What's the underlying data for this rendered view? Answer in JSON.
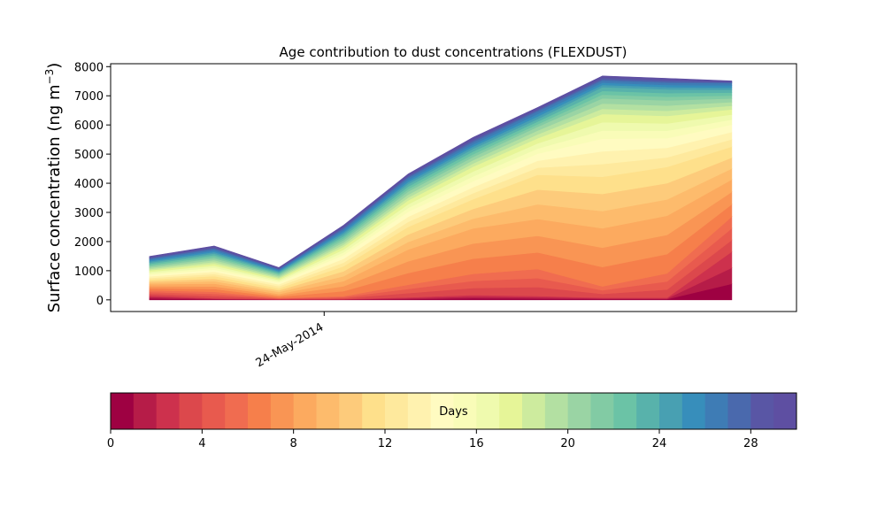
{
  "chart_data": {
    "type": "area",
    "stacked": true,
    "title": "Age contribution to dust concentrations (FLEXDUST)",
    "ylabel_text": "Surface concentration (ng m",
    "ylabel_sup": "−3",
    "ylabel_close": ")",
    "xlabel": "",
    "ylim": [
      -400,
      8100
    ],
    "yticks": [
      0,
      1000,
      2000,
      3000,
      4000,
      5000,
      6000,
      7000,
      8000
    ],
    "ytick_labels": [
      "0",
      "1000",
      "2000",
      "3000",
      "4000",
      "5000",
      "6000",
      "7000",
      "8000"
    ],
    "xlim": [
      -0.6,
      10.0
    ],
    "x": [
      0,
      1,
      2,
      3,
      4,
      5,
      6,
      7,
      8,
      9
    ],
    "xticks": [
      {
        "x": 2.7,
        "label": "24-May-2014"
      }
    ],
    "grid": false,
    "bands": 30,
    "cum_frac_knots": {
      "frac": [
        0,
        0.1,
        0.2,
        0.3,
        0.4,
        0.5,
        0.6,
        0.7,
        0.8,
        0.9,
        1.0
      ],
      "profiles": [
        [
          0,
          0.1,
          0.22,
          0.36,
          0.47,
          0.58,
          0.68,
          0.77,
          0.86,
          0.94,
          1.0
        ],
        [
          0,
          0.03,
          0.15,
          0.3,
          0.44,
          0.56,
          0.67,
          0.77,
          0.86,
          0.94,
          1.0
        ],
        [
          0,
          0.02,
          0.06,
          0.18,
          0.36,
          0.54,
          0.66,
          0.77,
          0.86,
          0.94,
          1.0
        ],
        [
          0,
          0.01,
          0.05,
          0.25,
          0.45,
          0.6,
          0.71,
          0.8,
          0.88,
          0.95,
          1.0
        ],
        [
          0,
          0.02,
          0.12,
          0.4,
          0.58,
          0.7,
          0.79,
          0.86,
          0.92,
          0.97,
          1.0
        ],
        [
          0,
          0.03,
          0.16,
          0.44,
          0.62,
          0.73,
          0.82,
          0.88,
          0.93,
          0.97,
          1.0
        ],
        [
          0,
          0.02,
          0.16,
          0.42,
          0.65,
          0.76,
          0.84,
          0.9,
          0.94,
          0.98,
          1.0
        ],
        [
          0,
          0.01,
          0.06,
          0.32,
          0.55,
          0.72,
          0.83,
          0.9,
          0.95,
          0.98,
          1.0
        ],
        [
          0,
          0.01,
          0.12,
          0.38,
          0.6,
          0.73,
          0.83,
          0.9,
          0.95,
          0.98,
          1.0
        ],
        [
          0,
          0.22,
          0.38,
          0.55,
          0.7,
          0.8,
          0.87,
          0.92,
          0.96,
          0.99,
          1.0
        ]
      ]
    },
    "totals": [
      1490,
      1850,
      1110,
      2560,
      4320,
      5570,
      6600,
      7680,
      7600,
      7510
    ],
    "colorbar": {
      "label": "Days",
      "range": [
        0,
        30
      ],
      "ticks": [
        0,
        4,
        8,
        12,
        16,
        20,
        24,
        28
      ],
      "tick_labels": [
        "0",
        "4",
        "8",
        "12",
        "16",
        "20",
        "24",
        "28"
      ],
      "colors": [
        "#9e0142",
        "#b61c48",
        "#cd314d",
        "#dc484c",
        "#e85a4e",
        "#f06c50",
        "#f67f4b",
        "#f99554",
        "#fcaa5f",
        "#fdbb6c",
        "#fdcb7b",
        "#fee08b",
        "#fee99d",
        "#fff2af",
        "#fffbc1",
        "#f9fcb8",
        "#effaae",
        "#e6f598",
        "#cdeb9e",
        "#b3e0a2",
        "#9ad4a4",
        "#82cba4",
        "#6bc3a6",
        "#58b2ab",
        "#48a0b2",
        "#378ebb",
        "#3e7cb5",
        "#4a69ad",
        "#5956a5",
        "#5e4fa2"
      ]
    }
  }
}
